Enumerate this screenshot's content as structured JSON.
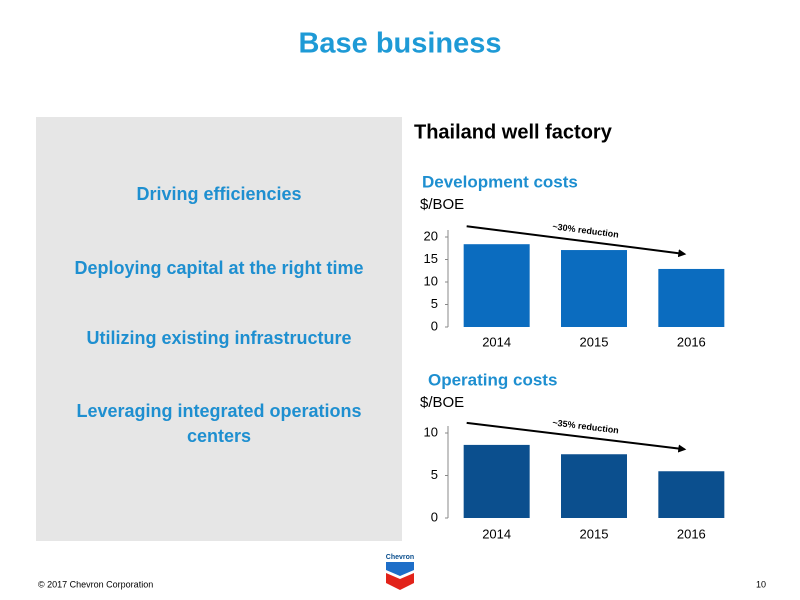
{
  "header": {
    "title": "Base business"
  },
  "panel": {
    "items": [
      "Driving efficiencies",
      "Deploying capital at the right time",
      "Utilizing existing infrastructure",
      "Leveraging integrated operations centers"
    ]
  },
  "section_title": "Thailand well factory",
  "chart_data": [
    {
      "type": "bar",
      "title": "Development costs",
      "y_label": "$/BOE",
      "annotation": "~30% reduction",
      "categories": [
        "2014",
        "2015",
        "2016"
      ],
      "values": [
        18.4,
        17.1,
        12.9
      ],
      "color": "#0b6cbf",
      "ylim": [
        0,
        20
      ],
      "yticks": [
        0,
        5,
        10,
        15,
        20
      ]
    },
    {
      "type": "bar",
      "title": "Operating costs",
      "y_label": "$/BOE",
      "annotation": "~35% reduction",
      "categories": [
        "2014",
        "2015",
        "2016"
      ],
      "values": [
        8.6,
        7.5,
        5.5
      ],
      "color": "#0b4f8e",
      "ylim": [
        0,
        10
      ],
      "yticks": [
        0,
        5,
        10
      ]
    }
  ],
  "logo": {
    "text": "Chevron"
  },
  "footer": {
    "copyright": "© 2017 Chevron Corporation",
    "page": "10"
  }
}
